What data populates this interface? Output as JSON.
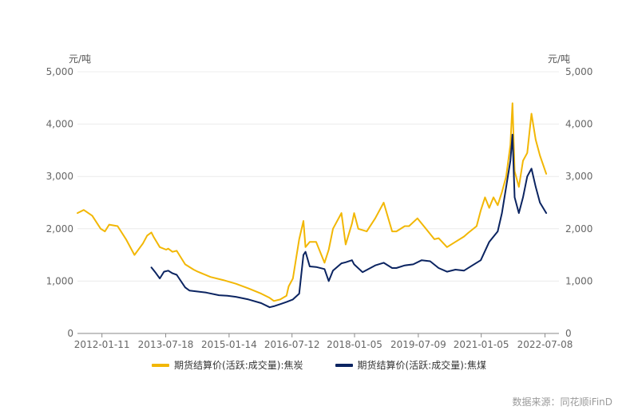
{
  "chart_data": {
    "type": "line",
    "left_axis_unit": "元/吨",
    "right_axis_unit": "元/吨",
    "ylim": [
      0,
      5000
    ],
    "yticks": [
      0,
      1000,
      2000,
      3000,
      4000,
      5000
    ],
    "ytick_labels": [
      "0",
      "1,000",
      "2,000",
      "3,000",
      "4,000",
      "5,000"
    ],
    "xlim": [
      2011.45,
      2022.85
    ],
    "xticks": [
      2012.03,
      2013.54,
      2015.04,
      2016.53,
      2018.01,
      2019.52,
      2021.01,
      2022.52
    ],
    "xtick_labels": [
      "2012-01-11",
      "2013-07-18",
      "2015-01-14",
      "2016-07-12",
      "2018-01-05",
      "2019-07-09",
      "2021-01-05",
      "2022-07-08"
    ],
    "grid": true,
    "legend_position": "bottom",
    "series": [
      {
        "name": "期货结算价(活跃:成交量):焦炭",
        "color": "#f2b705",
        "x": [
          2011.45,
          2011.6,
          2011.8,
          2012.0,
          2012.1,
          2012.2,
          2012.4,
          2012.6,
          2012.8,
          2013.0,
          2013.1,
          2013.2,
          2013.25,
          2013.4,
          2013.55,
          2013.6,
          2013.7,
          2013.8,
          2014.0,
          2014.2,
          2014.3,
          2014.6,
          2014.9,
          2015.2,
          2015.5,
          2015.8,
          2016.0,
          2016.1,
          2016.25,
          2016.4,
          2016.45,
          2016.55,
          2016.7,
          2016.8,
          2016.85,
          2016.95,
          2017.1,
          2017.3,
          2017.4,
          2017.5,
          2017.7,
          2017.8,
          2017.95,
          2018.0,
          2018.1,
          2018.3,
          2018.5,
          2018.7,
          2018.9,
          2019.0,
          2019.2,
          2019.3,
          2019.5,
          2019.7,
          2019.9,
          2020.0,
          2020.2,
          2020.4,
          2020.6,
          2020.7,
          2020.9,
          2021.0,
          2021.1,
          2021.2,
          2021.3,
          2021.4,
          2021.5,
          2021.6,
          2021.7,
          2021.75,
          2021.8,
          2021.9,
          2022.0,
          2022.1,
          2022.2,
          2022.3,
          2022.4,
          2022.55
        ],
        "y": [
          2300,
          2360,
          2250,
          2000,
          1950,
          2080,
          2050,
          1800,
          1500,
          1720,
          1870,
          1930,
          1850,
          1650,
          1600,
          1620,
          1560,
          1580,
          1320,
          1220,
          1180,
          1080,
          1020,
          950,
          860,
          760,
          680,
          620,
          650,
          720,
          900,
          1050,
          1800,
          2150,
          1650,
          1750,
          1750,
          1350,
          1600,
          2000,
          2300,
          1700,
          2100,
          2300,
          2000,
          1950,
          2200,
          2500,
          1950,
          1950,
          2050,
          2050,
          2200,
          2000,
          1800,
          1820,
          1650,
          1750,
          1850,
          1920,
          2050,
          2350,
          2600,
          2400,
          2600,
          2450,
          2700,
          3000,
          3600,
          4400,
          3100,
          2800,
          3300,
          3450,
          4200,
          3700,
          3400,
          3050
        ]
      },
      {
        "name": "期货结算价(活跃:成交量):焦煤",
        "color": "#0b2461",
        "x": [
          2013.2,
          2013.3,
          2013.4,
          2013.5,
          2013.6,
          2013.7,
          2013.8,
          2014.0,
          2014.1,
          2014.3,
          2014.5,
          2014.8,
          2015.0,
          2015.2,
          2015.5,
          2015.8,
          2016.0,
          2016.1,
          2016.25,
          2016.4,
          2016.55,
          2016.7,
          2016.8,
          2016.85,
          2016.95,
          2017.1,
          2017.3,
          2017.4,
          2017.5,
          2017.7,
          2017.8,
          2017.95,
          2018.0,
          2018.2,
          2018.5,
          2018.7,
          2018.9,
          2019.0,
          2019.2,
          2019.4,
          2019.6,
          2019.8,
          2020.0,
          2020.2,
          2020.4,
          2020.6,
          2020.8,
          2021.0,
          2021.2,
          2021.4,
          2021.5,
          2021.6,
          2021.7,
          2021.75,
          2021.8,
          2021.9,
          2022.0,
          2022.1,
          2022.2,
          2022.3,
          2022.4,
          2022.55
        ],
        "y": [
          1260,
          1160,
          1050,
          1180,
          1200,
          1150,
          1120,
          880,
          820,
          800,
          780,
          730,
          720,
          700,
          650,
          580,
          500,
          520,
          560,
          600,
          650,
          760,
          1500,
          1560,
          1280,
          1270,
          1230,
          1000,
          1200,
          1340,
          1360,
          1400,
          1320,
          1170,
          1300,
          1350,
          1250,
          1250,
          1300,
          1320,
          1400,
          1380,
          1250,
          1180,
          1220,
          1200,
          1300,
          1400,
          1750,
          1950,
          2300,
          2800,
          3300,
          3800,
          2600,
          2300,
          2600,
          3000,
          3150,
          2800,
          2500,
          2300
        ]
      }
    ],
    "source_text": "数据来源：同花顺iFinD"
  }
}
